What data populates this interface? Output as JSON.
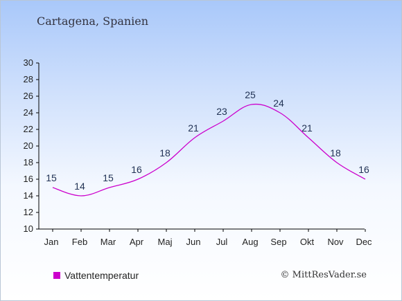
{
  "header": {
    "title": "Cartagena, Spanien"
  },
  "footer": {
    "copyright": "© MittResVader.se"
  },
  "colors": {
    "series": "#cc00cc",
    "axis": "#000000"
  },
  "chart_data": {
    "type": "line",
    "categories": [
      "Jan",
      "Feb",
      "Mar",
      "Apr",
      "Maj",
      "Jun",
      "Jul",
      "Aug",
      "Sep",
      "Okt",
      "Nov",
      "Dec"
    ],
    "series": [
      {
        "name": "Vattentemperatur",
        "values": [
          15,
          14,
          15,
          16,
          18,
          21,
          23,
          25,
          24,
          21,
          18,
          16
        ]
      }
    ],
    "y_ticks": [
      "10",
      "12",
      "14",
      "16",
      "18",
      "20",
      "22",
      "24",
      "26",
      "28",
      "30"
    ],
    "ylim": [
      10,
      30
    ],
    "grid": false,
    "legend": "bottom-left"
  }
}
